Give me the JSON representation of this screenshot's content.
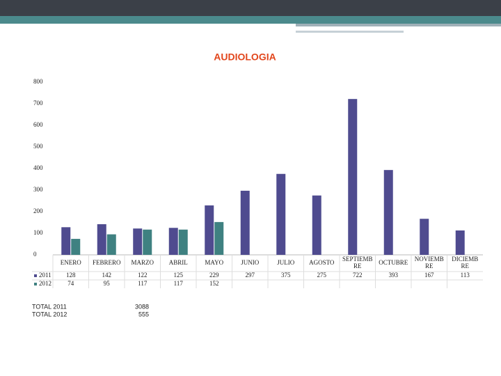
{
  "chart_data": {
    "type": "bar",
    "title": "AUDIOLOGIA",
    "categories": [
      "ENERO",
      "FEBRERO",
      "MARZO",
      "ABRIL",
      "MAYO",
      "JUNIO",
      "JULIO",
      "AGOSTO",
      "SEPTIEMBRE",
      "OCTUBRE",
      "NOVIEMBRE",
      "DICIEMBRE"
    ],
    "series": [
      {
        "name": "2011",
        "color": "#4f4b8f",
        "values": [
          128,
          142,
          122,
          125,
          229,
          297,
          375,
          275,
          722,
          393,
          167,
          113
        ]
      },
      {
        "name": "2012",
        "color": "#3f8181",
        "values": [
          74,
          95,
          117,
          117,
          152,
          null,
          null,
          null,
          null,
          null,
          null,
          null
        ]
      }
    ],
    "ylim": [
      0,
      800
    ],
    "yticks": [
      0,
      100,
      200,
      300,
      400,
      500,
      600,
      700,
      800
    ],
    "grid": false,
    "totals": [
      {
        "label": "TOTAL 2011",
        "value": 3088
      },
      {
        "label": "TOTAL 2012",
        "value": 555
      }
    ]
  }
}
